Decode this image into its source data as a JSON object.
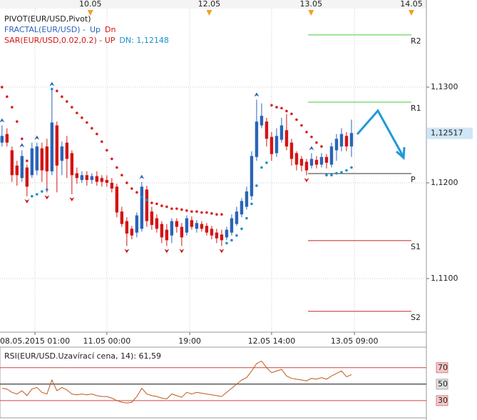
{
  "chart_data": [
    {
      "type": "candlestick",
      "legend": [
        [
          "PIVOT(EUR/USD,Pivot)"
        ],
        [
          "FRACTAL(EUR/USD)  -",
          "Up",
          "Dn"
        ],
        [
          "SAR(EUR/USD,0.02,0.2)  -  UP",
          "DN: 1,12148"
        ]
      ],
      "x": [
        0,
        1,
        2,
        3,
        4,
        5,
        6,
        7,
        8,
        9,
        10,
        11,
        12,
        13,
        14,
        15,
        16,
        17,
        18,
        19,
        20,
        21,
        22,
        23,
        24,
        25,
        26,
        27,
        28,
        29,
        30,
        31,
        32,
        33,
        34,
        35,
        36,
        37,
        38,
        39,
        40,
        41,
        42,
        43,
        44,
        45,
        46,
        47,
        48,
        49,
        50,
        51,
        52,
        53,
        54,
        55,
        56,
        57,
        58,
        59,
        60,
        61,
        62,
        63,
        64,
        65,
        66,
        67,
        68,
        69,
        70
      ],
      "open": [
        1.1242,
        1.1251,
        1.1234,
        1.1218,
        1.1205,
        1.1216,
        1.1208,
        1.1213,
        1.1236,
        1.1238,
        1.1212,
        1.126,
        1.1223,
        1.1242,
        1.1231,
        1.121,
        1.1203,
        1.1208,
        1.1203,
        1.1207,
        1.1205,
        1.1203,
        1.12,
        1.1196,
        1.117,
        1.116,
        1.1152,
        1.1148,
        1.1152,
        1.1193,
        1.117,
        1.1163,
        1.1157,
        1.1151,
        1.1145,
        1.116,
        1.1154,
        1.1148,
        1.1161,
        1.1152,
        1.1157,
        1.1155,
        1.1152,
        1.1148,
        1.1146,
        1.1143,
        1.1148,
        1.1157,
        1.1167,
        1.1175,
        1.1186,
        1.1227,
        1.126,
        1.1264,
        1.1248,
        1.1231,
        1.1245,
        1.1255,
        1.1242,
        1.1231,
        1.1225,
        1.1222,
        1.1218,
        1.1224,
        1.1219,
        1.1227,
        1.1219,
        1.1234,
        1.1238,
        1.1249,
        1.1238
      ],
      "high": [
        1.126,
        1.1257,
        1.1238,
        1.1223,
        1.1234,
        1.1219,
        1.1242,
        1.1242,
        1.1242,
        1.1246,
        1.1298,
        1.1264,
        1.1243,
        1.1249,
        1.1234,
        1.1216,
        1.1212,
        1.1212,
        1.121,
        1.1212,
        1.1208,
        1.1208,
        1.1205,
        1.1199,
        1.1175,
        1.1164,
        1.1155,
        1.1169,
        1.1201,
        1.1197,
        1.1175,
        1.1167,
        1.116,
        1.1157,
        1.1163,
        1.1163,
        1.1158,
        1.1166,
        1.1165,
        1.1161,
        1.116,
        1.1158,
        1.1155,
        1.1152,
        1.1151,
        1.1154,
        1.1167,
        1.1175,
        1.1184,
        1.1196,
        1.1233,
        1.1287,
        1.1283,
        1.1268,
        1.1253,
        1.1257,
        1.1268,
        1.1272,
        1.1246,
        1.1233,
        1.1228,
        1.1225,
        1.1231,
        1.1228,
        1.1231,
        1.123,
        1.1242,
        1.1251,
        1.1257,
        1.1253,
        1.1266
      ],
      "low": [
        1.1238,
        1.1238,
        1.1201,
        1.1197,
        1.1201,
        1.1186,
        1.1205,
        1.1208,
        1.1201,
        1.119,
        1.1208,
        1.119,
        1.1208,
        1.1205,
        1.1188,
        1.1199,
        1.12,
        1.1197,
        1.1199,
        1.1197,
        1.1196,
        1.1196,
        1.119,
        1.1164,
        1.1154,
        1.1134,
        1.1141,
        1.1143,
        1.1149,
        1.1154,
        1.1151,
        1.1148,
        1.1137,
        1.1134,
        1.1137,
        1.1148,
        1.1134,
        1.1145,
        1.1151,
        1.1148,
        1.1149,
        1.1145,
        1.1141,
        1.1137,
        1.1134,
        1.114,
        1.1145,
        1.1155,
        1.1164,
        1.1172,
        1.1182,
        1.1223,
        1.1257,
        1.1238,
        1.1223,
        1.1227,
        1.1242,
        1.1234,
        1.1218,
        1.1213,
        1.1212,
        1.1208,
        1.1215,
        1.1215,
        1.1216,
        1.1215,
        1.1216,
        1.1223,
        1.1233,
        1.1233,
        1.1227
      ],
      "close": [
        1.1249,
        1.1242,
        1.1208,
        1.1208,
        1.1228,
        1.1196,
        1.1236,
        1.1238,
        1.1213,
        1.1212,
        1.1263,
        1.1218,
        1.1238,
        1.1225,
        1.1208,
        1.1205,
        1.1208,
        1.1203,
        1.1207,
        1.1201,
        1.1201,
        1.12,
        1.1194,
        1.1169,
        1.1157,
        1.1147,
        1.1145,
        1.1166,
        1.1196,
        1.116,
        1.1156,
        1.1152,
        1.1143,
        1.114,
        1.116,
        1.1154,
        1.1143,
        1.1163,
        1.1154,
        1.1158,
        1.1152,
        1.1148,
        1.1145,
        1.1142,
        1.114,
        1.1151,
        1.1163,
        1.117,
        1.1181,
        1.1191,
        1.1228,
        1.1264,
        1.127,
        1.1246,
        1.123,
        1.1249,
        1.126,
        1.1238,
        1.1225,
        1.1219,
        1.1218,
        1.1213,
        1.1225,
        1.1219,
        1.1227,
        1.1221,
        1.1238,
        1.1246,
        1.1251,
        1.1238,
        1.1252
      ],
      "up_color": "#2a64b8",
      "down_color": "#d41414",
      "sar": {
        "values": [
          1.13,
          1.129,
          1.1279,
          1.1264,
          1.1246,
          1.1223,
          1.1186,
          1.1188,
          1.1191,
          1.1193,
          1.1298,
          1.1296,
          1.129,
          1.1285,
          1.1279,
          1.1273,
          1.1268,
          1.1263,
          1.1257,
          1.1251,
          1.1243,
          1.1234,
          1.1225,
          1.1216,
          1.1208,
          1.12,
          1.1194,
          1.119,
          1.1185,
          1.1182,
          1.1179,
          1.1178,
          1.1176,
          1.1175,
          1.1173,
          1.1173,
          1.1172,
          1.1171,
          1.117,
          1.117,
          1.1169,
          1.1169,
          1.1168,
          1.1167,
          1.1167,
          1.1137,
          1.114,
          1.1145,
          1.1152,
          1.1163,
          1.1178,
          1.1197,
          1.1216,
          1.1221,
          1.1281,
          1.1279,
          1.1278,
          1.1275,
          1.1272,
          1.1266,
          1.126,
          1.1253,
          1.1248,
          1.1242,
          1.1238,
          1.1208,
          1.1208,
          1.121,
          1.1211,
          1.1213,
          1.1216
        ],
        "up_color": "#1a8fd0",
        "down_color": "#dd1c1c"
      },
      "fractals": {
        "up_x": [
          0,
          4,
          7,
          10,
          28,
          51,
          62
        ],
        "up": [
          1.126,
          1.1234,
          1.1242,
          1.1298,
          1.1201,
          1.1287,
          1.1231
        ],
        "up_color": "#2a64b8",
        "down_x": [
          5,
          9,
          14,
          25,
          33,
          36,
          44,
          61
        ],
        "down": [
          1.1186,
          1.119,
          1.1188,
          1.1134,
          1.1134,
          1.1134,
          1.1134,
          1.1208
        ],
        "down_color": "#d41414"
      },
      "pivots": [
        {
          "name": "R2",
          "value": 1.13545,
          "color": "#3ccc3c"
        },
        {
          "name": "R1",
          "value": 1.12843,
          "color": "#3ccc3c"
        },
        {
          "name": "P",
          "value": 1.12097,
          "color": "#333333"
        },
        {
          "name": "S1",
          "value": 1.11396,
          "color": "#c42020"
        },
        {
          "name": "S2",
          "value": 1.10657,
          "color": "#c42020"
        }
      ],
      "last_price": {
        "value": 1.12517,
        "label": "1,12517"
      },
      "xlim": [
        -0.4,
        85
      ],
      "xticks": [
        {
          "value": 6.6,
          "label": "08.05.2015 01:00"
        },
        {
          "value": 21,
          "label": "11.05 00:00"
        },
        {
          "value": 37.6,
          "label": "19:00"
        },
        {
          "value": 54,
          "label": "12.05 14:00"
        },
        {
          "value": 70.6,
          "label": "13.05 09:00"
        }
      ],
      "top_xticks": [
        {
          "value": 17.7,
          "label": "10.05"
        },
        {
          "value": 41.5,
          "label": "12.05"
        },
        {
          "value": 61.9,
          "label": "13.05"
        },
        {
          "value": 82,
          "label": "14.05"
        }
      ],
      "ylim": [
        1.1044,
        1.1391
      ],
      "yticks": [
        {
          "value": 1.11,
          "label": "1,1100"
        },
        {
          "value": 1.12,
          "label": "1,1200"
        },
        {
          "value": 1.13,
          "label": "1,1300"
        }
      ],
      "grid": true
    },
    {
      "type": "line",
      "title": "RSI(EUR/USD.Uzavírací cena, 14): 61,59",
      "color": "#c0581c",
      "x": [
        0,
        1,
        2,
        3,
        4,
        5,
        6,
        7,
        8,
        9,
        10,
        11,
        12,
        13,
        14,
        15,
        16,
        17,
        18,
        19,
        20,
        21,
        22,
        23,
        24,
        25,
        26,
        27,
        28,
        29,
        30,
        31,
        32,
        33,
        34,
        35,
        36,
        37,
        38,
        39,
        40,
        41,
        42,
        43,
        44,
        45,
        46,
        47,
        48,
        49,
        50,
        51,
        52,
        53,
        54,
        55,
        56,
        57,
        58,
        59,
        60,
        61,
        62,
        63,
        64,
        65,
        66,
        67,
        68,
        69,
        70
      ],
      "values": [
        45,
        44,
        40,
        38,
        42,
        36,
        44,
        46,
        40,
        38,
        55,
        42,
        46,
        43,
        38,
        37,
        38,
        37,
        38,
        36,
        35,
        35,
        33,
        30,
        28,
        27,
        28,
        35,
        45,
        38,
        36,
        35,
        33,
        32,
        38,
        36,
        34,
        40,
        38,
        40,
        39,
        38,
        37,
        36,
        35,
        40,
        45,
        50,
        55,
        58,
        66,
        75,
        78,
        70,
        64,
        66,
        68,
        60,
        57,
        56,
        55,
        54,
        57,
        56,
        58,
        56,
        60,
        63,
        66,
        59,
        61.59
      ],
      "xlim": [
        -0.4,
        85
      ],
      "ylim": [
        9,
        95
      ],
      "yticks": [
        30,
        50,
        70
      ]
    }
  ]
}
